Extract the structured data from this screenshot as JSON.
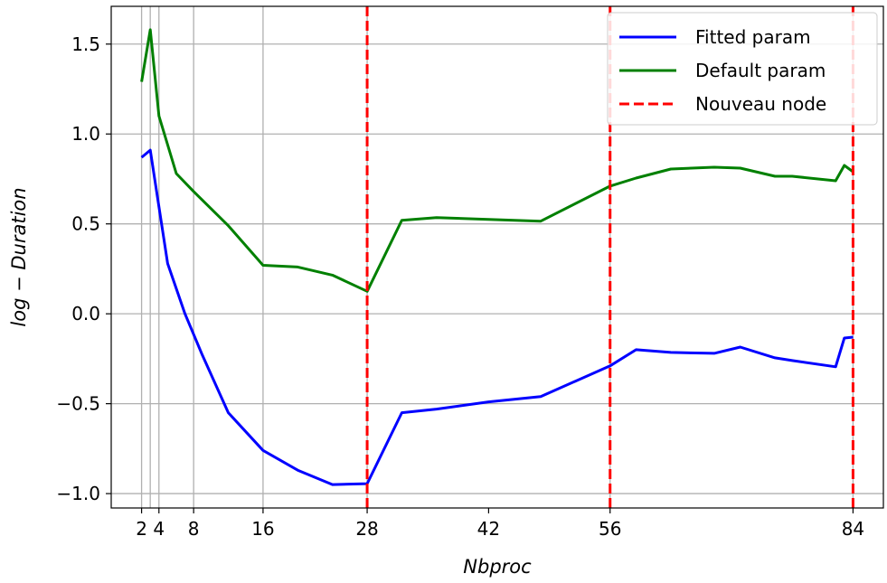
{
  "chart_data": {
    "type": "line",
    "title": "",
    "xlabel": "Nbproc",
    "ylabel": "log − Duration",
    "xlim": [
      -1.5,
      87.5
    ],
    "ylim": [
      -1.08,
      1.71
    ],
    "xticks": [
      {
        "value": 2,
        "label": "2"
      },
      {
        "value": 4,
        "label": "4"
      },
      {
        "value": 8,
        "label": "8"
      },
      {
        "value": 16,
        "label": "16"
      },
      {
        "value": 28,
        "label": "28"
      },
      {
        "value": 42,
        "label": "42"
      },
      {
        "value": 56,
        "label": "56"
      },
      {
        "value": 84,
        "label": "84"
      }
    ],
    "yticks": [
      {
        "value": 1.5,
        "label": "1.5"
      },
      {
        "value": 1.0,
        "label": "1.0"
      },
      {
        "value": 0.5,
        "label": "0.5"
      },
      {
        "value": 0.0,
        "label": "0.0"
      },
      {
        "value": -0.5,
        "label": "−0.5"
      },
      {
        "value": -1.0,
        "label": "−1.0"
      }
    ],
    "vgrid_x": [
      2,
      3,
      4,
      8,
      16,
      28,
      56,
      84
    ],
    "hgrid": true,
    "vlines": [
      28,
      56,
      84
    ],
    "legend_position": "top-right",
    "series": [
      {
        "name": "Fitted param",
        "color": "#0000ff",
        "style": "solid",
        "x": [
          2,
          3,
          5,
          7,
          9,
          12,
          16,
          20,
          24,
          28,
          32,
          36,
          42,
          48,
          56,
          59,
          63,
          68,
          71,
          75,
          77,
          82,
          83,
          84
        ],
        "y": [
          0.87,
          0.91,
          0.28,
          0.0,
          -0.23,
          -0.55,
          -0.76,
          -0.87,
          -0.95,
          -0.945,
          -0.55,
          -0.53,
          -0.49,
          -0.46,
          -0.29,
          -0.2,
          -0.215,
          -0.22,
          -0.185,
          -0.245,
          -0.26,
          -0.295,
          -0.135,
          -0.13
        ]
      },
      {
        "name": "Default param",
        "color": "#008000",
        "style": "solid",
        "x": [
          2,
          3,
          4,
          6,
          8,
          12,
          16,
          20,
          24,
          28,
          32,
          36,
          42,
          48,
          56,
          59,
          63,
          68,
          71,
          75,
          77,
          82,
          83,
          84
        ],
        "y": [
          1.29,
          1.58,
          1.1,
          0.78,
          0.68,
          0.49,
          0.27,
          0.26,
          0.215,
          0.125,
          0.52,
          0.535,
          0.525,
          0.515,
          0.71,
          0.755,
          0.805,
          0.815,
          0.81,
          0.765,
          0.765,
          0.74,
          0.825,
          0.79
        ]
      }
    ],
    "vline_series": {
      "name": "Nouveau node",
      "color": "#ff0000",
      "style": "dashed"
    }
  }
}
